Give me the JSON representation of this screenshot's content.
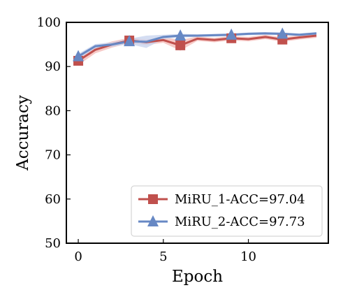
{
  "chart_data": {
    "type": "line",
    "title": "",
    "xlabel": "Epoch",
    "ylabel": "Accuracy",
    "xlim": [
      -0.7,
      14.7
    ],
    "ylim": [
      50,
      100
    ],
    "xticks": [
      0,
      5,
      10
    ],
    "yticks": [
      50,
      60,
      70,
      80,
      90,
      100
    ],
    "grid": false,
    "legend_position": "bottom-right",
    "x": [
      0,
      1,
      2,
      3,
      4,
      5,
      6,
      7,
      8,
      9,
      10,
      11,
      12,
      13,
      14
    ],
    "series": [
      {
        "name": "MiRU_1-ACC=97.04",
        "color": "#c0504d",
        "band_color": "#f4b8b4",
        "marker": "square",
        "marker_indices": [
          0,
          3,
          6,
          9,
          12
        ],
        "values": [
          91.3,
          93.8,
          95.0,
          95.9,
          95.5,
          96.0,
          94.8,
          96.3,
          96.0,
          96.4,
          96.2,
          96.7,
          96.1,
          96.6,
          97.0
        ],
        "band": [
          1.0,
          0.8,
          0.7,
          0.6,
          0.6,
          0.6,
          1.2,
          0.5,
          0.5,
          0.5,
          0.5,
          0.5,
          0.5,
          0.5,
          0.5
        ]
      },
      {
        "name": "MiRU_2-ACC=97.73",
        "color": "#6788c4",
        "band_color": "#c5d2ee",
        "marker": "triangle",
        "marker_indices": [
          0,
          3,
          6,
          9,
          12
        ],
        "values": [
          92.3,
          94.6,
          95.0,
          95.7,
          95.6,
          96.7,
          97.0,
          97.0,
          97.1,
          97.2,
          97.4,
          97.5,
          97.4,
          97.2,
          97.5
        ],
        "band": [
          0.6,
          0.5,
          0.5,
          0.6,
          1.4,
          0.5,
          0.4,
          0.3,
          0.3,
          0.3,
          0.3,
          0.3,
          0.3,
          0.3,
          0.3
        ]
      }
    ]
  }
}
